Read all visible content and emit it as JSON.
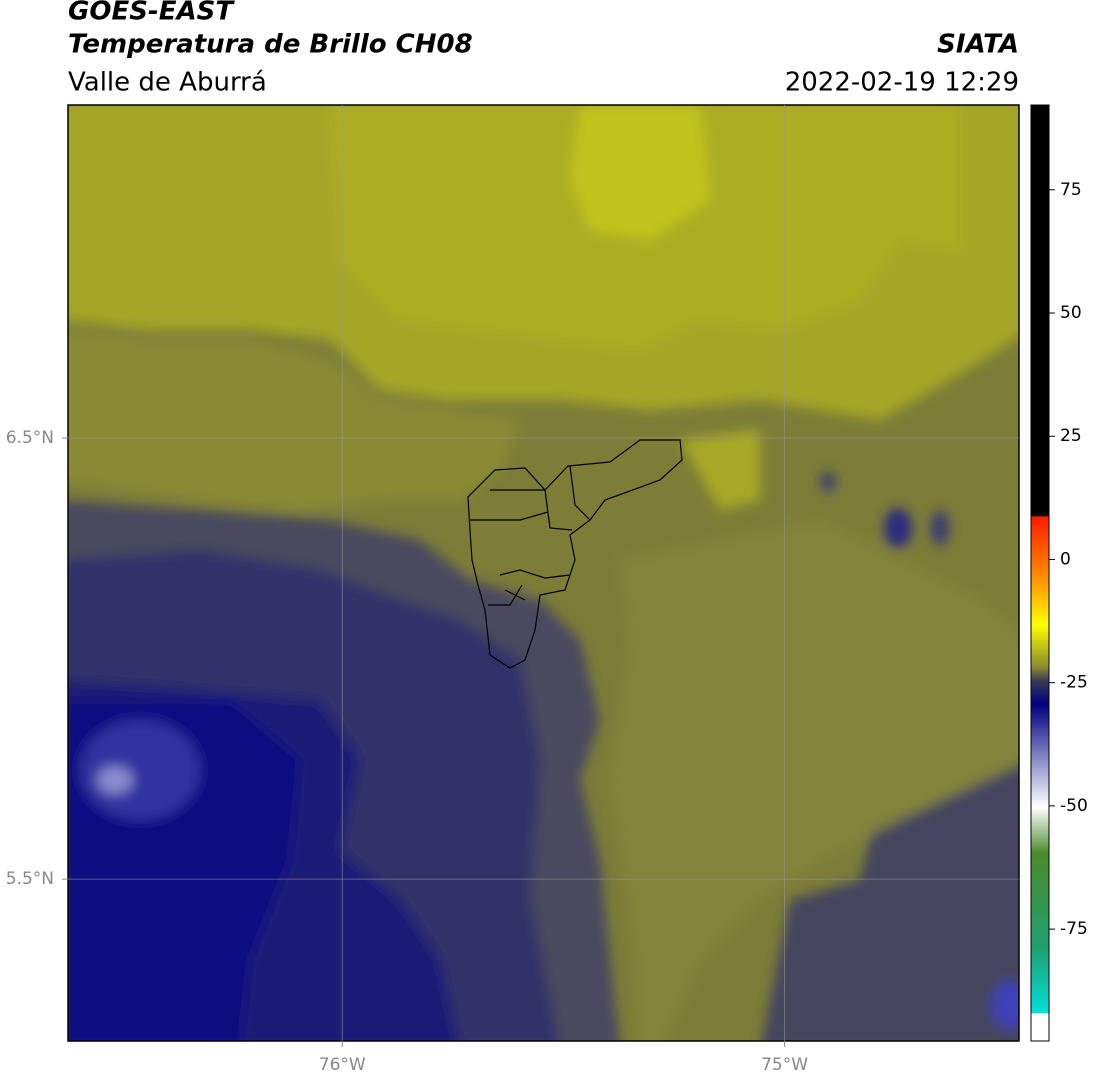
{
  "header": {
    "title": "GOES-EAST",
    "subtitle": "Temperatura de Brillo CH08",
    "region": "Valle de Aburrá",
    "source": "SIATA",
    "datetime": "2022-02-19 12:29"
  },
  "map": {
    "xlim": [
      -76.62,
      -74.47
    ],
    "ylim": [
      5.133,
      7.255
    ],
    "xticks": [
      {
        "value": -76,
        "label": "76°W"
      },
      {
        "value": -75,
        "label": "75°W"
      }
    ],
    "yticks": [
      {
        "value": 6.5,
        "label": "6.5°N"
      },
      {
        "value": 5.5,
        "label": "5.5°N"
      }
    ]
  },
  "colorbar": {
    "lim": [
      -97.7,
      92.2
    ],
    "ticks": [
      75,
      50,
      25,
      0,
      -25,
      -50,
      -75
    ]
  }
}
